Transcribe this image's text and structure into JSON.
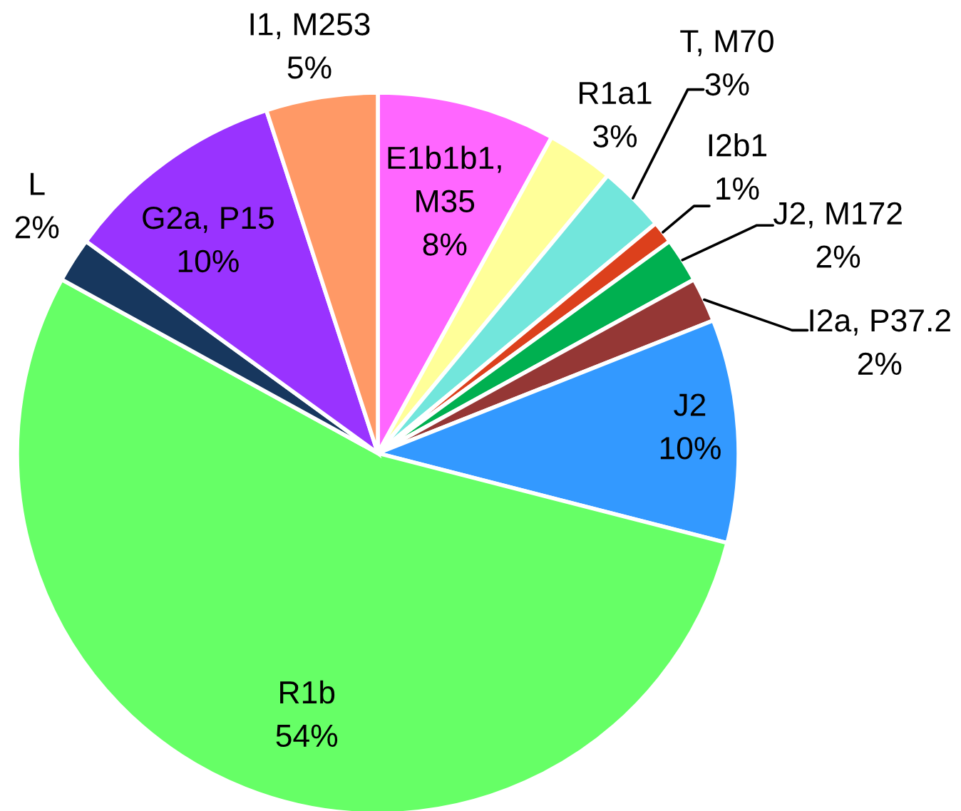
{
  "chart_data": {
    "type": "pie",
    "categories": [
      "E1b1b1, M35",
      "R1a1",
      "T, M70",
      "I2b1",
      "J2, M172",
      "I2a, P37.2",
      "J2",
      "R1b",
      "L",
      "G2a, P15",
      "I1, M253"
    ],
    "values": [
      8,
      3,
      3,
      1,
      2,
      2,
      10,
      54,
      2,
      10,
      5
    ],
    "value_labels": [
      "8%",
      "3%",
      "3%",
      "1%",
      "2%",
      "2%",
      "10%",
      "54%",
      "2%",
      "10%",
      "5%"
    ],
    "colors": [
      "#ff66ff",
      "#ffff99",
      "#72e6dc",
      "#dc401c",
      "#00b050",
      "#953735",
      "#3399ff",
      "#66ff66",
      "#17375e",
      "#9933ff",
      "#ff9966"
    ]
  }
}
